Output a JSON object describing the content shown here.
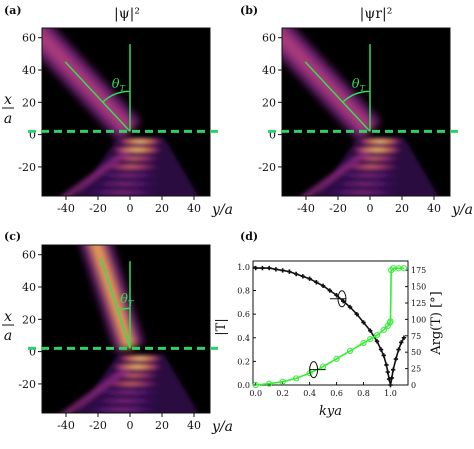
{
  "chart_data": [
    {
      "type": "heatmap",
      "panel_label": "(a)",
      "title": "|ψ|²",
      "xlabel": "y/a",
      "ylabel": "x/a",
      "x_ticks": [
        -40,
        -20,
        0,
        20,
        40
      ],
      "y_ticks": [
        60,
        40,
        20,
        0,
        -20
      ],
      "xlim": [
        -55,
        50
      ],
      "ylim": [
        -38,
        66
      ],
      "angle_label": "θT",
      "beam_angle_deg": 43,
      "interface_x": 2
    },
    {
      "type": "heatmap",
      "panel_label": "(b)",
      "title": "|ψr|²",
      "xlabel": "y/a",
      "ylabel": "",
      "x_ticks": [
        -40,
        -20,
        0,
        20,
        40
      ],
      "y_ticks": [
        60,
        40,
        20,
        0,
        -20
      ],
      "xlim": [
        -55,
        50
      ],
      "ylim": [
        -38,
        66
      ],
      "angle_label": "θT",
      "beam_angle_deg": 43,
      "interface_x": 2
    },
    {
      "type": "heatmap",
      "panel_label": "(c)",
      "title": "",
      "xlabel": "y/a",
      "ylabel": "x/a",
      "x_ticks": [
        -40,
        -20,
        0,
        20,
        40
      ],
      "y_ticks": [
        60,
        40,
        20,
        0,
        -20
      ],
      "xlim": [
        -55,
        50
      ],
      "ylim": [
        -38,
        66
      ],
      "angle_label": "θT",
      "beam_angle_deg": 18,
      "interface_x": 2
    },
    {
      "type": "line",
      "panel_label": "(d)",
      "title": "",
      "xlabel": "kya",
      "ylabel": "|T|",
      "y2label": "Arg(T) [°]",
      "x_ticks": [
        0.0,
        0.2,
        0.4,
        0.6,
        0.8,
        1.0
      ],
      "y_ticks": [
        0.0,
        0.2,
        0.4,
        0.6,
        0.8,
        1.0
      ],
      "y2_ticks": [
        0,
        25,
        50,
        75,
        100,
        125,
        150,
        175
      ],
      "xlim": [
        -0.02,
        1.13
      ],
      "ylim": [
        0,
        1.05
      ],
      "y2lim": [
        0,
        189
      ],
      "series": [
        {
          "axis": "left",
          "color": "#111111",
          "x": [
            0.0,
            0.05,
            0.1,
            0.15,
            0.2,
            0.25,
            0.3,
            0.35,
            0.4,
            0.45,
            0.5,
            0.55,
            0.6,
            0.65,
            0.7,
            0.75,
            0.8,
            0.85,
            0.9,
            0.93,
            0.95,
            0.97,
            0.98,
            0.99,
            1.0,
            1.01,
            1.02,
            1.04,
            1.06,
            1.08,
            1.1
          ],
          "y": [
            0.99,
            0.99,
            0.99,
            0.98,
            0.97,
            0.96,
            0.94,
            0.92,
            0.9,
            0.87,
            0.84,
            0.8,
            0.76,
            0.71,
            0.66,
            0.6,
            0.53,
            0.46,
            0.37,
            0.3,
            0.25,
            0.17,
            0.11,
            0.05,
            0.0,
            0.06,
            0.13,
            0.22,
            0.3,
            0.36,
            0.4
          ]
        },
        {
          "axis": "right",
          "color": "#33ee33",
          "x": [
            0.0,
            0.1,
            0.2,
            0.3,
            0.4,
            0.5,
            0.6,
            0.7,
            0.8,
            0.85,
            0.9,
            0.95,
            0.98,
            0.995,
            1.0,
            1.005,
            1.02,
            1.06,
            1.1
          ],
          "y": [
            0,
            2,
            5,
            10,
            18,
            28,
            40,
            52,
            64,
            70,
            76,
            84,
            90,
            95,
            97,
            175,
            178,
            178,
            178
          ]
        }
      ]
    }
  ]
}
